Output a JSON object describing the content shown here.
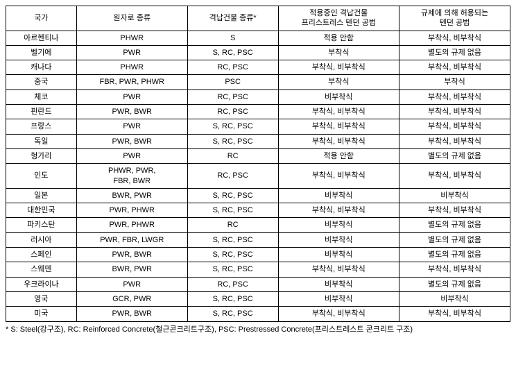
{
  "table": {
    "columns": [
      "국가",
      "원자로 종류",
      "격납건물 종류*",
      "적용중인 격납건물\n프리스트레스 텐던 공법",
      "규제에 의해 허용되는\n텐던 공법"
    ],
    "rows": [
      [
        "아르헨티나",
        "PHWR",
        "S",
        "적용 안함",
        "부착식, 비부착식"
      ],
      [
        "벨기에",
        "PWR",
        "S, RC, PSC",
        "부착식",
        "별도의 규제 없음"
      ],
      [
        "캐나다",
        "PHWR",
        "RC, PSC",
        "부착식, 비부착식",
        "부착식, 비부착식"
      ],
      [
        "중국",
        "FBR, PWR, PHWR",
        "PSC",
        "부착식",
        "부착식"
      ],
      [
        "체코",
        "PWR",
        "RC, PSC",
        "비부착식",
        "부착식, 비부착식"
      ],
      [
        "핀란드",
        "PWR, BWR",
        "RC, PSC",
        "부착식, 비부착식",
        "부착식, 비부착식"
      ],
      [
        "프랑스",
        "PWR",
        "S, RC, PSC",
        "부착식, 비부착식",
        "부착식, 비부착식"
      ],
      [
        "독일",
        "PWR, BWR",
        "S, RC, PSC",
        "부착식, 비부착식",
        "부착식, 비부착식"
      ],
      [
        "헝가리",
        "PWR",
        "RC",
        "적용 안함",
        "별도의 규제 없음"
      ],
      [
        "인도",
        "PHWR, PWR,\nFBR, BWR",
        "RC, PSC",
        "부착식, 비부착식",
        "부착식, 비부착식"
      ],
      [
        "일본",
        "BWR, PWR",
        "S, RC, PSC",
        "비부착식",
        "비부착식"
      ],
      [
        "대한민국",
        "PWR, PHWR",
        "S, RC, PSC",
        "부착식, 비부착식",
        "부착식, 비부착식"
      ],
      [
        "파키스탄",
        "PWR, PHWR",
        "RC",
        "비부착식",
        "별도의 규제 없음"
      ],
      [
        "러시아",
        "PWR, FBR, LWGR",
        "S, RC, PSC",
        "비부착식",
        "별도의 규제 없음"
      ],
      [
        "스페인",
        "PWR, BWR",
        "S, RC, PSC",
        "비부착식",
        "별도의 규제 없음"
      ],
      [
        "스웨덴",
        "BWR, PWR",
        "S, RC, PSC",
        "부착식, 비부착식",
        "부착식, 비부착식"
      ],
      [
        "우크라이나",
        "PWR",
        "RC, PSC",
        "비부착식",
        "별도의 규제 없음"
      ],
      [
        "영국",
        "GCR, PWR",
        "S, RC, PSC",
        "비부착식",
        "비부착식"
      ],
      [
        "미국",
        "PWR, BWR",
        "S, RC, PSC",
        "부착식, 비부착식",
        "부착식, 비부착식"
      ]
    ]
  },
  "footnote": "* S: Steel(강구조), RC: Reinforced Concrete(철근콘크리트구조), PSC: Prestressed Concrete(프리스트레스트 콘크리트 구조)"
}
